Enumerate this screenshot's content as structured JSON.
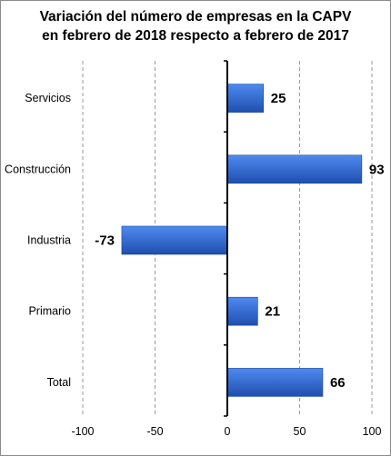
{
  "chart_data": {
    "type": "bar",
    "orientation": "horizontal",
    "title_lines": [
      "Variación del número de empresas en la CAPV",
      "en febrero de 2018 respecto a febrero de 2017"
    ],
    "categories": [
      "Servicios",
      "Construcción",
      "Industria",
      "Primario",
      "Total"
    ],
    "values": [
      25,
      93,
      -73,
      21,
      66
    ],
    "data_labels": [
      "25",
      "93",
      "-73",
      "21",
      "66"
    ],
    "xlim": [
      -100,
      100
    ],
    "x_ticks": [
      -100,
      -50,
      0,
      50,
      100
    ],
    "x_tick_labels": [
      "-100",
      "-50",
      "0",
      "50",
      "100"
    ],
    "grid": "vertical dashed",
    "legend": "none",
    "colors": {
      "bar_light": "#4f8af0",
      "bar_dark": "#1f4fae",
      "grid": "#9a9a9a",
      "axis": "#000000"
    }
  }
}
